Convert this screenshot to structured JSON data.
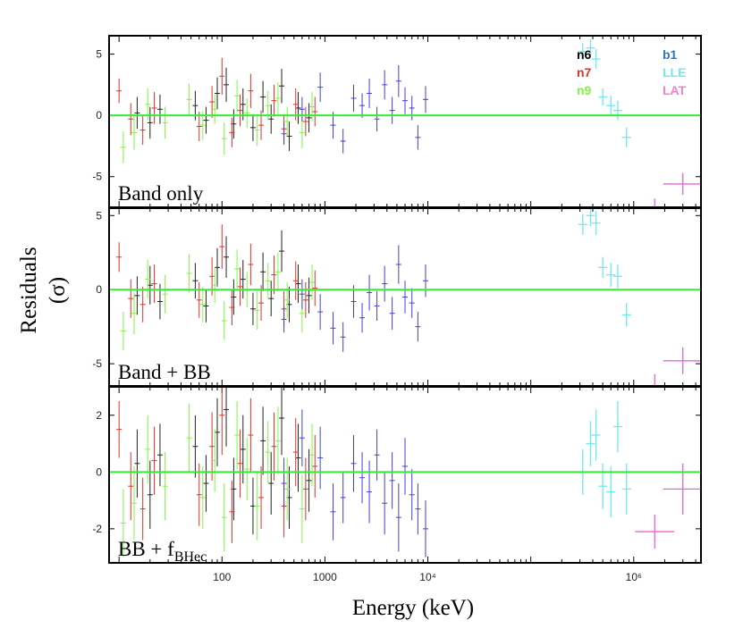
{
  "chart_data": {
    "type": "scatter",
    "xlabel": "Energy (keV)",
    "ylabel": [
      "Residuals",
      "(σ)"
    ],
    "xscale": "log",
    "xlim": [
      8,
      4500000
    ],
    "x_ticks": [
      {
        "value": 100,
        "label": "100"
      },
      {
        "value": 1000,
        "label": "1000"
      },
      {
        "value": 10000,
        "label": "10⁴"
      },
      {
        "value": 1000000,
        "label": "10⁶"
      }
    ],
    "legend": [
      {
        "label": "n6",
        "color": "#000000"
      },
      {
        "label": "n7",
        "color": "#e0302a"
      },
      {
        "label": "n9",
        "color": "#7ef542"
      },
      {
        "label": "b1",
        "color": "#2878c8"
      },
      {
        "label": "LLE",
        "color": "#6fe8f0"
      },
      {
        "label": "LAT",
        "color": "#f080c8"
      }
    ],
    "zero_line_color": "#33ee33",
    "panels": [
      {
        "label": "Band only",
        "ylim": [
          -7.5,
          6.5
        ],
        "yticks": [
          5,
          0,
          -5
        ],
        "ytick_labels": [
          "5",
          "0",
          "-5"
        ],
        "series": [
          {
            "name": "n6",
            "color": "#222222",
            "x": [
              15,
              20,
              25,
              55,
              70,
              90,
              110,
              130,
              160,
              200,
              250,
              300,
              380,
              450,
              550,
              700
            ],
            "y": [
              0.2,
              -0.6,
              0.5,
              0.8,
              -0.4,
              1.8,
              2.5,
              -0.7,
              0.9,
              -1.0,
              1.5,
              -0.3,
              2.4,
              -1.7,
              0.6,
              -0.2
            ],
            "err": [
              1.3,
              1.3,
              1.2,
              1.2,
              1.1,
              1.3,
              1.4,
              1.2,
              1.3,
              1.1,
              1.3,
              1.2,
              1.4,
              1.2,
              1.3,
              1.2
            ]
          },
          {
            "name": "n7",
            "color": "#e0302a",
            "x": [
              10,
              13,
              17,
              22,
              60,
              80,
              100,
              125,
              150,
              190,
              240,
              320,
              400,
              520,
              650,
              800
            ],
            "y": [
              2.0,
              -0.3,
              -1.2,
              0.6,
              -0.9,
              1.1,
              3.2,
              -1.4,
              0.4,
              2.0,
              -0.8,
              1.2,
              -1.1,
              0.9,
              -0.5,
              0.3
            ],
            "err": [
              1.0,
              1.3,
              1.2,
              1.3,
              1.2,
              1.3,
              1.5,
              1.2,
              1.3,
              1.4,
              1.2,
              1.3,
              1.2,
              1.3,
              1.2,
              1.2
            ]
          },
          {
            "name": "n9",
            "color": "#7ef542",
            "x": [
              11,
              14,
              19,
              28,
              48,
              65,
              85,
              105,
              140,
              175,
              220,
              280,
              350,
              430,
              600,
              750
            ],
            "y": [
              -2.6,
              -1.4,
              0.9,
              -0.6,
              1.3,
              -0.8,
              0.5,
              -1.9,
              1.6,
              0.2,
              -1.2,
              0.8,
              1.4,
              -0.5,
              -1.4,
              0.7
            ],
            "err": [
              1.3,
              1.4,
              1.3,
              1.3,
              1.3,
              1.2,
              1.2,
              1.3,
              1.3,
              1.2,
              1.3,
              1.2,
              1.3,
              1.2,
              1.3,
              1.2
            ]
          },
          {
            "name": "b1",
            "color": "#4040dd",
            "x": [
              400,
              600,
              900,
              1200,
              1500,
              1900,
              2300,
              2700,
              3200,
              3800,
              4500,
              5200,
              6000,
              7000,
              8000,
              9500
            ],
            "y": [
              -1.5,
              0.5,
              2.3,
              -0.8,
              -2.1,
              1.4,
              0.8,
              1.8,
              -0.3,
              2.5,
              0.4,
              2.8,
              1.2,
              0.6,
              -1.8,
              1.3
            ],
            "err": [
              0.9,
              1.0,
              1.2,
              1.1,
              1.0,
              1.1,
              1.0,
              1.2,
              1.0,
              1.2,
              1.1,
              1.3,
              1.1,
              1.0,
              1.0,
              1.1
            ]
          },
          {
            "name": "LLE",
            "color": "#6fe8f0",
            "x": [
              320000,
              380000,
              430000,
              500000,
              600000,
              700000,
              850000
            ],
            "y": [
              5.2,
              5.5,
              4.6,
              1.5,
              0.8,
              0.4,
              -1.8
            ],
            "err": [
              0.7,
              0.7,
              0.8,
              0.7,
              0.8,
              0.8,
              0.8
            ]
          },
          {
            "name": "LAT",
            "color": "#ee60dd",
            "x": [
              1600000,
              3000000
            ],
            "y": [
              -7.6,
              -5.6
            ],
            "err": [
              0.8,
              0.9
            ]
          }
        ]
      },
      {
        "label": "Band + BB",
        "ylim": [
          -6.5,
          5.5
        ],
        "yticks": [
          5,
          0,
          -5
        ],
        "ytick_labels": [
          "5",
          "0",
          "-5"
        ],
        "series": [
          {
            "name": "n6",
            "color": "#222222",
            "x": [
              15,
              20,
              25,
              55,
              70,
              90,
              110,
              130,
              160,
              200,
              250,
              300,
              380,
              450,
              550,
              700
            ],
            "y": [
              -0.4,
              0.3,
              -0.8,
              0.6,
              -1.1,
              1.5,
              2.2,
              -0.5,
              0.7,
              -1.3,
              1.2,
              -0.6,
              2.6,
              -1.0,
              0.4,
              -0.4
            ],
            "err": [
              1.3,
              1.3,
              1.2,
              1.2,
              1.1,
              1.3,
              1.4,
              1.2,
              1.3,
              1.1,
              1.3,
              1.2,
              1.4,
              1.2,
              1.3,
              1.2
            ]
          },
          {
            "name": "n7",
            "color": "#e0302a",
            "x": [
              10,
              13,
              17,
              22,
              60,
              80,
              100,
              125,
              150,
              190,
              240,
              320,
              400,
              520,
              650,
              800
            ],
            "y": [
              2.2,
              -0.6,
              -1.0,
              0.4,
              -0.7,
              0.9,
              2.9,
              -1.2,
              0.2,
              1.7,
              -0.9,
              1.0,
              -1.3,
              0.6,
              -0.7,
              0.1
            ],
            "err": [
              1.0,
              1.3,
              1.2,
              1.3,
              1.2,
              1.3,
              1.5,
              1.2,
              1.3,
              1.4,
              1.2,
              1.3,
              1.2,
              1.3,
              1.2,
              1.2
            ]
          },
          {
            "name": "n9",
            "color": "#7ef542",
            "x": [
              11,
              14,
              19,
              28,
              48,
              65,
              85,
              105,
              140,
              175,
              220,
              280,
              350,
              430,
              600,
              750
            ],
            "y": [
              -2.8,
              -1.6,
              0.7,
              -0.3,
              1.1,
              -1.0,
              0.3,
              -2.1,
              1.4,
              0.0,
              -1.4,
              0.6,
              1.2,
              -0.7,
              -1.6,
              0.5
            ],
            "err": [
              1.3,
              1.4,
              1.3,
              1.3,
              1.3,
              1.2,
              1.2,
              1.3,
              1.3,
              1.2,
              1.3,
              1.2,
              1.3,
              1.2,
              1.3,
              1.2
            ]
          },
          {
            "name": "b1",
            "color": "#4040dd",
            "x": [
              400,
              600,
              900,
              1200,
              1500,
              1900,
              2300,
              2700,
              3200,
              3800,
              4500,
              5200,
              6000,
              7000,
              8000,
              9500
            ],
            "y": [
              -2.0,
              -0.3,
              -1.5,
              -2.6,
              -3.2,
              -0.8,
              -1.9,
              -0.2,
              -1.1,
              0.4,
              -1.6,
              1.7,
              -0.5,
              -0.9,
              -2.5,
              0.6
            ],
            "err": [
              0.9,
              1.0,
              1.2,
              1.1,
              1.0,
              1.1,
              1.0,
              1.2,
              1.0,
              1.2,
              1.1,
              1.3,
              1.1,
              1.0,
              1.0,
              1.1
            ]
          },
          {
            "name": "LLE",
            "color": "#6fe8f0",
            "x": [
              320000,
              380000,
              430000,
              500000,
              600000,
              700000,
              850000
            ],
            "y": [
              4.4,
              5.0,
              4.5,
              1.5,
              1.0,
              0.9,
              -1.7
            ],
            "err": [
              0.7,
              0.7,
              0.8,
              0.7,
              0.8,
              0.8,
              0.8
            ]
          },
          {
            "name": "LAT",
            "color": "#ee60dd",
            "x": [
              1600000,
              3000000
            ],
            "y": [
              -6.5,
              -4.8
            ],
            "err": [
              0.8,
              0.9
            ]
          }
        ]
      },
      {
        "label": "BB + f",
        "label_subscript": "BHec",
        "ylim": [
          -3.2,
          3.0
        ],
        "yticks": [
          2,
          0,
          -2
        ],
        "ytick_labels": [
          "2",
          "0",
          "-2"
        ],
        "series": [
          {
            "name": "n6",
            "color": "#222222",
            "x": [
              15,
              20,
              25,
              55,
              70,
              90,
              110,
              130,
              160,
              200,
              250,
              300,
              380,
              450,
              550,
              700
            ],
            "y": [
              0.3,
              -0.8,
              0.6,
              0.9,
              -0.4,
              1.4,
              2.2,
              -0.6,
              0.8,
              -1.2,
              1.1,
              -0.4,
              1.9,
              -0.9,
              0.5,
              -0.3
            ],
            "err": [
              1.2,
              1.2,
              1.1,
              1.1,
              1.0,
              1.2,
              1.3,
              1.1,
              1.2,
              1.0,
              1.2,
              1.1,
              1.3,
              1.1,
              1.2,
              1.1
            ]
          },
          {
            "name": "n7",
            "color": "#e0302a",
            "x": [
              10,
              13,
              17,
              22,
              60,
              80,
              100,
              125,
              150,
              190,
              240,
              320,
              400,
              520,
              650,
              800
            ],
            "y": [
              1.5,
              -0.5,
              -1.3,
              0.4,
              -0.8,
              0.9,
              2.0,
              -1.4,
              0.3,
              1.3,
              -0.9,
              0.9,
              -1.2,
              0.7,
              -0.6,
              0.2
            ],
            "err": [
              1.0,
              1.2,
              1.1,
              1.2,
              1.1,
              1.2,
              1.4,
              1.1,
              1.2,
              1.3,
              1.1,
              1.2,
              1.1,
              1.2,
              1.1,
              1.1
            ]
          },
          {
            "name": "n9",
            "color": "#7ef542",
            "x": [
              11,
              14,
              19,
              28,
              48,
              65,
              85,
              105,
              140,
              175,
              220,
              280,
              350,
              430,
              600,
              750
            ],
            "y": [
              -1.8,
              -1.1,
              0.8,
              -0.5,
              1.2,
              -0.9,
              0.4,
              -1.6,
              1.3,
              0.1,
              -1.2,
              0.7,
              1.1,
              -0.6,
              -1.3,
              0.6
            ],
            "err": [
              1.2,
              1.3,
              1.2,
              1.2,
              1.2,
              1.1,
              1.1,
              1.2,
              1.2,
              1.1,
              1.2,
              1.1,
              1.2,
              1.1,
              1.2,
              1.1
            ]
          },
          {
            "name": "b1",
            "color": "#4040dd",
            "x": [
              400,
              600,
              900,
              1200,
              1500,
              1900,
              2300,
              2700,
              3200,
              3800,
              4500,
              5200,
              6000,
              7000,
              8000,
              9500
            ],
            "y": [
              -0.4,
              1.2,
              0.5,
              -1.4,
              -0.9,
              0.3,
              -0.2,
              -0.7,
              0.6,
              -1.1,
              -0.3,
              -1.6,
              0.2,
              -0.8,
              -1.3,
              -2.0
            ],
            "err": [
              0.9,
              1.0,
              1.1,
              1.0,
              0.9,
              1.0,
              0.9,
              1.1,
              0.9,
              1.1,
              1.0,
              1.2,
              1.0,
              0.9,
              0.9,
              1.0
            ]
          },
          {
            "name": "LLE",
            "color": "#6fe8f0",
            "x": [
              320000,
              380000,
              430000,
              500000,
              600000,
              700000,
              850000
            ],
            "y": [
              0.0,
              1.0,
              1.3,
              -0.5,
              -0.7,
              1.6,
              -0.6
            ],
            "err": [
              0.8,
              0.8,
              0.9,
              0.8,
              0.9,
              0.9,
              0.9
            ]
          },
          {
            "name": "LAT",
            "color": "#ee60dd",
            "x": [
              1600000,
              3000000
            ],
            "y": [
              -2.1,
              -0.6
            ],
            "err": [
              0.6,
              0.9
            ]
          }
        ]
      }
    ]
  }
}
